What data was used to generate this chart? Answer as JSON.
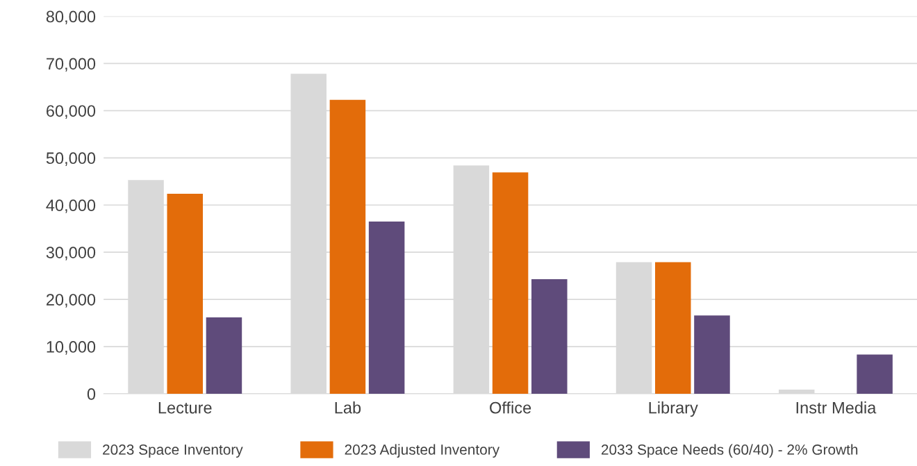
{
  "chart_data": {
    "type": "bar",
    "categories": [
      "Lecture",
      "Lab",
      "Office",
      "Library",
      "Instr Media"
    ],
    "series": [
      {
        "name": "2023 Space Inventory",
        "color": "#d9d9d9",
        "values": [
          45300,
          67800,
          48400,
          27900,
          900
        ]
      },
      {
        "name": "2023 Adjusted Inventory",
        "color": "#e36c0a",
        "values": [
          42400,
          62300,
          46900,
          27900,
          null
        ]
      },
      {
        "name": "2033 Space Needs (60/40) - 2% Growth",
        "color": "#5f4b7b",
        "values": [
          16200,
          36500,
          24300,
          16600,
          8300
        ]
      }
    ],
    "ylim": [
      0,
      80000
    ],
    "yticks": [
      {
        "value": 0,
        "label": "0"
      },
      {
        "value": 10000,
        "label": "10,000"
      },
      {
        "value": 20000,
        "label": "20,000"
      },
      {
        "value": 30000,
        "label": "30,000"
      },
      {
        "value": 40000,
        "label": "40,000"
      },
      {
        "value": 50000,
        "label": "50,000"
      },
      {
        "value": 60000,
        "label": "60,000"
      },
      {
        "value": 70000,
        "label": "70,000"
      },
      {
        "value": 80000,
        "label": "80,000"
      }
    ],
    "grid": "y",
    "legend": "bottom"
  }
}
